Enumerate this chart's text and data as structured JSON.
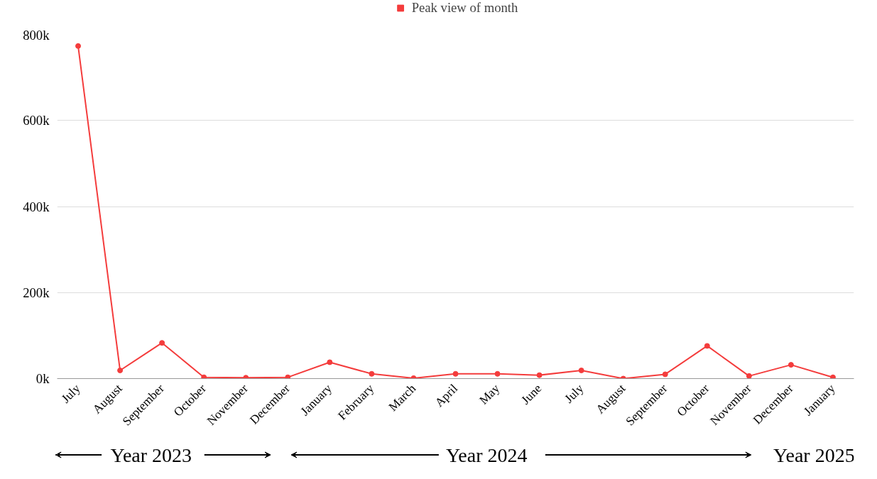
{
  "chart_data": {
    "type": "line",
    "categories": [
      "July",
      "August",
      "September",
      "October",
      "November",
      "December",
      "January",
      "February",
      "March",
      "April",
      "May",
      "June",
      "July",
      "August",
      "September",
      "October",
      "November",
      "December",
      "January"
    ],
    "series": [
      {
        "name": "Peak view of month",
        "color": "#f43c3c",
        "values": [
          773000,
          19000,
          83000,
          3000,
          2000,
          3000,
          38000,
          11000,
          1000,
          11000,
          11000,
          8000,
          19000,
          0,
          10000,
          76000,
          6000,
          32000,
          3000
        ]
      }
    ],
    "ylim": [
      0,
      800000
    ],
    "yticks": [
      {
        "value": 0,
        "label": "0k"
      },
      {
        "value": 200000,
        "label": "200k"
      },
      {
        "value": 400000,
        "label": "400k"
      },
      {
        "value": 600000,
        "label": "600k"
      },
      {
        "value": 800000,
        "label": "800k"
      }
    ],
    "grid": "y",
    "legend": "top",
    "marker": "circle",
    "line_style": "solid",
    "annotations": [
      "Year 2023",
      "Year 2024",
      "Year 2025"
    ]
  }
}
